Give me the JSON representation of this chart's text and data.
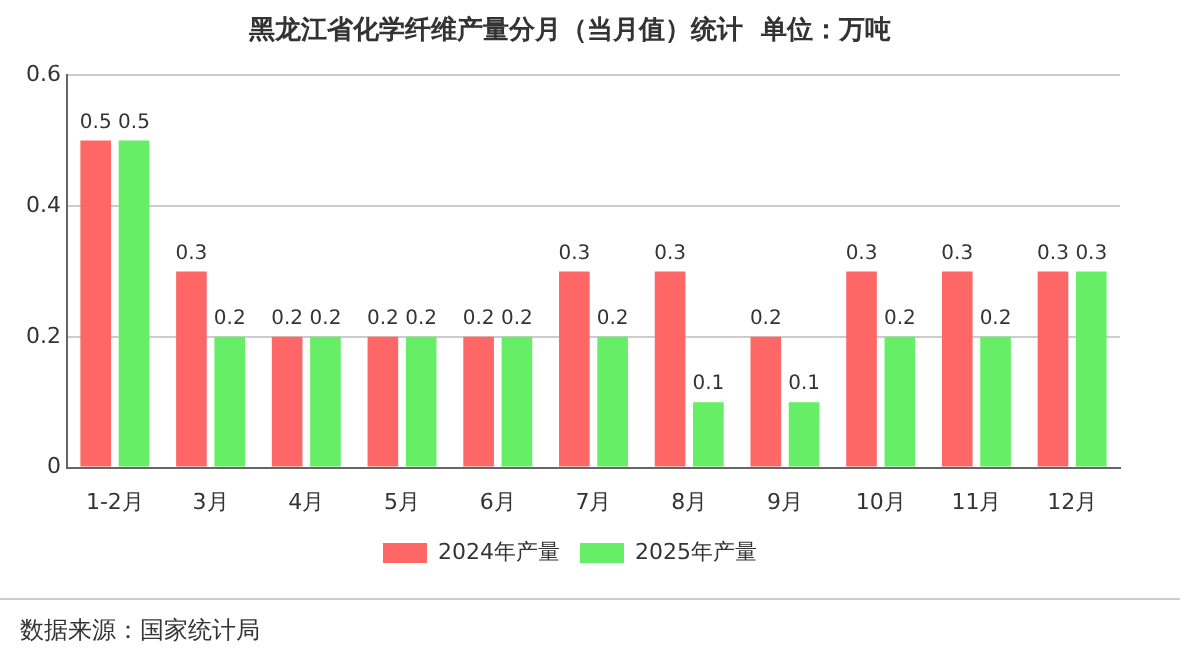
{
  "chart_data": {
    "type": "bar",
    "title": "黑龙江省化学纤维产量分月（当月值）统计  单位：万吨",
    "categories": [
      "1-2月",
      "3月",
      "4月",
      "5月",
      "6月",
      "7月",
      "8月",
      "9月",
      "10月",
      "11月",
      "12月"
    ],
    "series": [
      {
        "name": "2024年产量",
        "color": "#ff6666",
        "values": [
          0.5,
          0.3,
          0.2,
          0.2,
          0.2,
          0.3,
          0.3,
          0.2,
          0.3,
          0.3,
          0.3
        ]
      },
      {
        "name": "2025年产量",
        "color": "#66ee66",
        "values": [
          0.5,
          0.2,
          0.2,
          0.2,
          0.2,
          0.2,
          0.1,
          0.1,
          0.2,
          0.2,
          0.3
        ]
      }
    ],
    "ylim": [
      0,
      0.6
    ],
    "yticks": [
      0,
      0.2,
      0.4,
      0.6
    ],
    "grid": "y",
    "legend": "bottom",
    "data_labels": true,
    "annotations": [
      "数据来源：国家统计局"
    ]
  }
}
